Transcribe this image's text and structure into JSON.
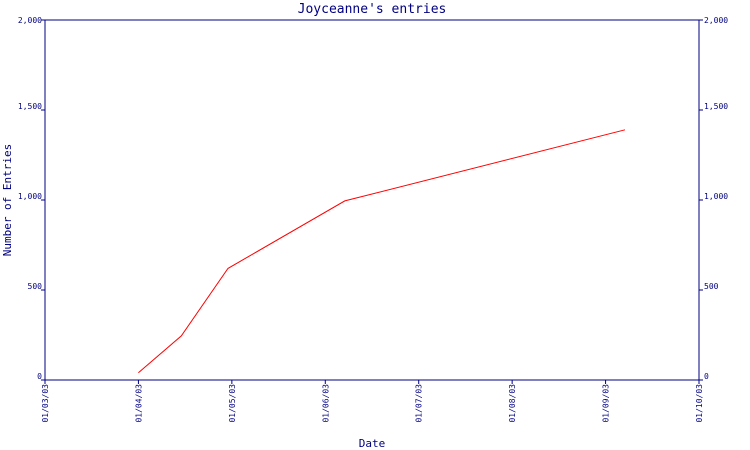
{
  "chart_data": {
    "type": "line",
    "title": "Joyceanne's entries",
    "xlabel": "Date",
    "ylabel": "Number of Entries",
    "xlim": [
      "2003-01-03",
      "2003-01-10"
    ],
    "ylim": [
      0,
      2000
    ],
    "x_ticks": [
      "01/03/03",
      "01/04/03",
      "01/05/03",
      "01/06/03",
      "01/07/03",
      "01/08/03",
      "01/09/03",
      "01/10/03"
    ],
    "y_ticks": [
      "0",
      "500",
      "1,000",
      "1,500",
      "2,000"
    ],
    "y_tick_values": [
      0,
      500,
      1000,
      1500,
      2000
    ],
    "grid": false,
    "right_axis": true,
    "series": [
      {
        "color": "#ff0000",
        "points": [
          {
            "x": "2003-01-04 00:00",
            "y": 40
          },
          {
            "x": "2003-01-04 11:00",
            "y": 245
          },
          {
            "x": "2003-01-04 23:00",
            "y": 620
          },
          {
            "x": "2003-01-06 05:00",
            "y": 995
          },
          {
            "x": "2003-01-09 05:00",
            "y": 1390
          }
        ]
      }
    ]
  }
}
